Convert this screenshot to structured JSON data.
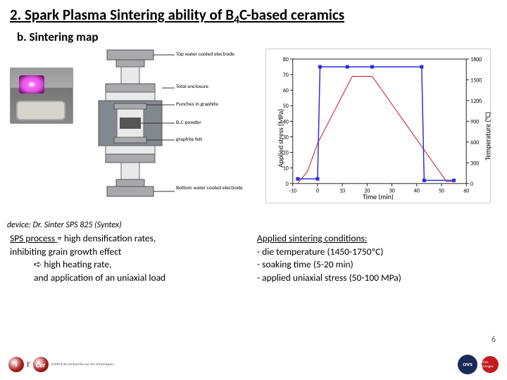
{
  "title_prefix": "2. Spark Plasma Sintering ability of B",
  "title_sub": "4",
  "title_suffix": "C-based ceramics",
  "subtitle": "b. Sintering map",
  "schematic": {
    "labels": {
      "top_electrode": "Top water cooled electrode",
      "enclosure": "Total enclosure",
      "punches": "Punches in graphite",
      "powder": "B₄C powder",
      "felt": "graphite felt",
      "bottom_electrode": "Bottom water cooled\nelectrode"
    },
    "caption": "device: Dr. Sinter SPS 825 (Syntex)"
  },
  "chart": {
    "x_label": "Time (min)",
    "y_left_label": "Applied stress (MPa)",
    "y_right_label": "Temperature (°C)",
    "x_ticks": [
      -10,
      0,
      10,
      20,
      30,
      40,
      50,
      60
    ],
    "y_left_ticks": [
      0,
      10,
      20,
      30,
      40,
      50,
      60,
      70,
      80
    ],
    "y_right_ticks": [
      0,
      300,
      600,
      900,
      1200,
      1500,
      1800
    ],
    "stress_color": "#2b2fd8",
    "temp_color": "#c0181a",
    "stress": [
      [
        -8,
        3
      ],
      [
        0,
        3
      ],
      [
        1,
        75
      ],
      [
        12,
        75
      ],
      [
        22,
        75
      ],
      [
        42,
        75
      ],
      [
        43,
        2
      ],
      [
        55,
        2
      ]
    ],
    "temp": [
      [
        -8,
        0
      ],
      [
        -4,
        180
      ],
      [
        0,
        580
      ],
      [
        14,
        1550
      ],
      [
        22,
        1550
      ],
      [
        52,
        30
      ],
      [
        55,
        30
      ]
    ]
  },
  "text": {
    "sps_line1_u": "SPS process ",
    "sps_line1_rest": "= high densification rates,",
    "sps_line2": "inhibiting grain growth effect",
    "sps_line3": "➪ high heating rate,",
    "sps_line4": "and application of an uniaxial load",
    "cond_title": "Applied sintering conditions:",
    "cond_1": "- die temperature (1450-1750ºC)",
    "cond_2": "- soaking time (5-20 min)",
    "cond_3": "- applied uniaxial stress (50-100 MPa)"
  },
  "footer": {
    "ircer_i": "i",
    "ircer_r": "r",
    "ircer_cer": "Cer",
    "ircer_small": "institut de recherche sur les céramiques",
    "cnrs": "cnrs",
    "unilim": "Univ. Limoges",
    "pagenum": "6"
  }
}
